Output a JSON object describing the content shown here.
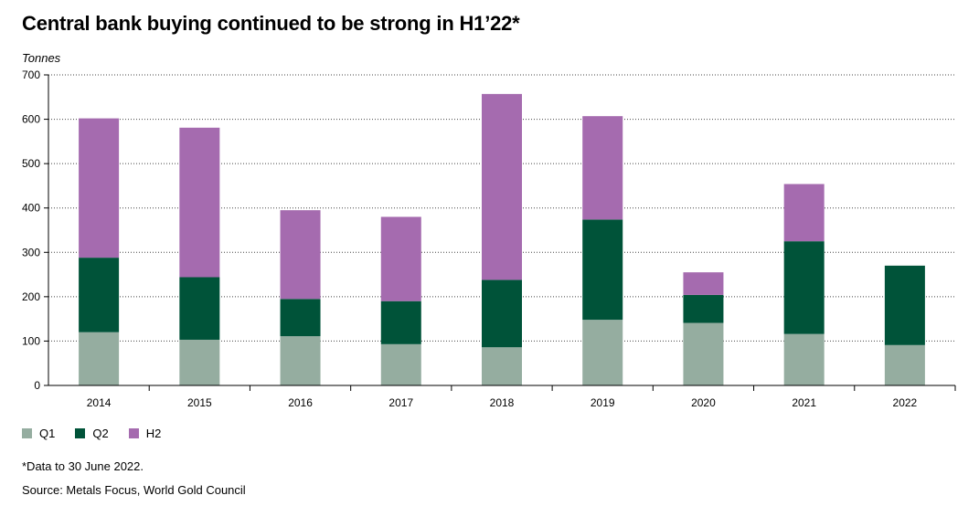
{
  "title": "Central bank buying continued to be strong in H1’22*",
  "unit_label": "Tonnes",
  "footnote": "*Data to 30 June 2022.",
  "source": "Source: Metals Focus, World Gold Council",
  "colors": {
    "Q1": "#95ADA0",
    "Q2": "#005339",
    "H2": "#A56BAF"
  },
  "chart_data": {
    "type": "bar",
    "stacked": true,
    "categories": [
      "2014",
      "2015",
      "2016",
      "2017",
      "2018",
      "2019",
      "2020",
      "2021",
      "2022"
    ],
    "series": [
      {
        "name": "Q1",
        "values": [
          120,
          103,
          111,
          93,
          86,
          148,
          141,
          116,
          91
        ]
      },
      {
        "name": "Q2",
        "values": [
          168,
          141,
          84,
          97,
          152,
          226,
          63,
          209,
          179
        ]
      },
      {
        "name": "H2",
        "values": [
          314,
          337,
          200,
          190,
          419,
          233,
          51,
          129,
          0
        ]
      }
    ],
    "ylim": [
      0,
      700
    ],
    "yticks": [
      0,
      100,
      200,
      300,
      400,
      500,
      600,
      700
    ],
    "ylabel": "Tonnes",
    "grid": "dotted horizontal",
    "legend": "bottom-left"
  }
}
